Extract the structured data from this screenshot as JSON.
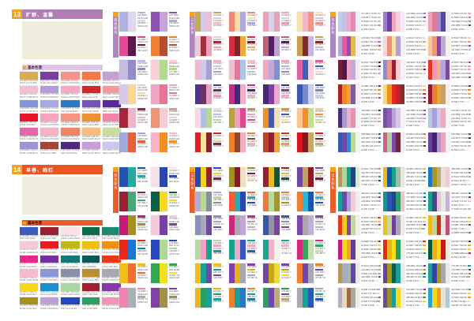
{
  "page": {
    "background": "#ffffff"
  },
  "sections": [
    {
      "number": "13",
      "title": "旷野、温馨",
      "panel_label": "基本色谱",
      "theme_color": "#b27cb4",
      "accent_color": "#f2a41c",
      "strip_color": "#ae86c0",
      "label_bar_bg": "#dcc6e2",
      "label_bar_text_color": "#4a2a50",
      "cream_color": "#efeedd",
      "palette": [
        [
          "#d8ac54",
          "#7c3da0",
          "#f49488",
          "#f47848",
          "#c4a0d4"
        ],
        [
          "#f7bcd4",
          "#b49cdc",
          "#f8a8c4",
          "#d42830",
          "#f49898"
        ],
        [
          "#8494d8",
          "#a8a8e4",
          "#2c78c8",
          "#7454b4",
          "#582898"
        ],
        [
          "#e81428",
          "#f8a4bc",
          "#f89480",
          "#f09034",
          "#f284a8"
        ],
        [
          "#e864ac",
          "#f8b0c4",
          "#f08464",
          "#f8bc80",
          "#ccdc9c"
        ],
        [
          "#9c94d4",
          "#a04838",
          "#50287c",
          "#c89cd8",
          "#ccc8ec"
        ]
      ],
      "groups": [
        {
          "label": "双色配色",
          "cards": [
            [
              "#b0b4e4",
              "#dcd8f0"
            ],
            [
              "#8c54b0",
              "#c4a4dc"
            ],
            [
              "#e8489c",
              "#5c1848"
            ],
            [
              "#f08030",
              "#b84c30"
            ],
            [
              "#c4bce4",
              "#948cc8"
            ],
            [
              "#f8d0dc",
              "#b4d890"
            ],
            [
              "#d4c8ec",
              "#f8d894"
            ],
            [
              "#f0a4c4",
              "#e87498"
            ],
            [
              "#a82438",
              "#f0b4c8"
            ],
            [
              "#f09478",
              "#f8ccd4"
            ],
            [
              "#a0a8e0",
              "#e86038"
            ],
            [
              "#f8b4c8",
              "#f09020"
            ]
          ]
        },
        {
          "label": "三色配色",
          "cards": [
            [
              "#c8a850",
              "#d8c8e8",
              "#f0c0d0"
            ],
            [
              "#f08878",
              "#f8e0a0",
              "#b0a8d8"
            ],
            [
              "#f0a0b8",
              "#d8d0e8",
              "#e8a0b8"
            ],
            [
              "#f8e0b0",
              "#f0b8c8",
              "#f09488"
            ],
            [
              "#f0c8d8",
              "#a03040",
              "#f0a0b8"
            ],
            [
              "#d03040",
              "#802030",
              "#f0a840"
            ],
            [
              "#c06078",
              "#502060",
              "#c0a0d0"
            ],
            [
              "#c8a050",
              "#803028",
              "#c8b8e0"
            ],
            [
              "#f0b8c8",
              "#d0c8e8",
              "#a8a0d0"
            ],
            [
              "#f0c0d0",
              "#e87898",
              "#b0c4e8"
            ],
            [
              "#f0a8c0",
              "#c0a8d8",
              "#8090d0"
            ],
            [
              "#e060a0",
              "#4060b8",
              "#f8d0dc"
            ],
            [
              "#503090",
              "#703060",
              "#e8a0c0"
            ],
            [
              "#c03080",
              "#402880",
              "#f0b0c8"
            ],
            [
              "#482878",
              "#8040a0",
              "#f0a8c8"
            ],
            [
              "#3858b0",
              "#7888d0",
              "#c8d0ec"
            ],
            [
              "#f8d8e0",
              "#b0c0e0",
              "#b8d890"
            ],
            [
              "#b8a040",
              "#f0a0c0",
              "#e04890"
            ],
            [
              "#f09020",
              "#4858a8",
              "#f8e0b0"
            ],
            [
              "#f8c890",
              "#f09030",
              "#c8dc90"
            ],
            [
              "#e81828",
              "#f8e0a0",
              "#902030"
            ],
            [
              "#f08030",
              "#904830",
              "#f0b0c0"
            ],
            [
              "#c04028",
              "#902030",
              "#f0a030"
            ],
            [
              "#d81820",
              "#801820",
              "#c8a868"
            ]
          ]
        },
        {
          "label": "五色配色",
          "cards": [
            [
              "#c0cce8",
              "#c8c0e8",
              "#f0a8c8",
              "#e888b0",
              "#f4f0f8"
            ],
            [
              "#9880c8",
              "#7040a8",
              "#f0a8c0",
              "#f8d0e0",
              "#f0ecf8"
            ],
            [
              "#f0a0b8",
              "#e07898",
              "#a090c8",
              "#5048a0",
              "#ece8f4"
            ],
            [
              "#b8a8d8",
              "#e858a0",
              "#9050b0",
              "#e8b848",
              "#f8f0f0"
            ],
            [
              "#f8d8e0",
              "#f09078",
              "#f8e0a8",
              "#b0a0d8",
              "#f4f0f8"
            ],
            [
              "#f8c8a0",
              "#f09878",
              "#8048a8",
              "#c0a8d8",
              "#f8f0ec"
            ],
            [
              "#702038",
              "#501848",
              "#f0a0c0",
              "#c8a8d8",
              "#f0ecf4"
            ],
            [
              "#8890d0",
              "#f09888",
              "#982030",
              "#f8d0d8",
              "#f4f4f8"
            ],
            [
              "#e03828",
              "#f098b0",
              "#f0b098",
              "#b0a8d8",
              "#8048a0"
            ],
            [
              "#a82020",
              "#f08820",
              "#f0a040",
              "#8058a8",
              "#f4ecf0"
            ],
            [
              "#f8d878",
              "#f09020",
              "#e82818",
              "#c02030",
              "#803028"
            ],
            [
              "#901828",
              "#e88030",
              "#e8a838",
              "#c8a068",
              "#f4ede4"
            ],
            [
              "#483078",
              "#a898d0",
              "#f0b0c8",
              "#e890b0",
              "#f4f0f4"
            ],
            [
              "#7850b0",
              "#9060b8",
              "#c0a0d8",
              "#d8c8e8",
              "#f6f2f8"
            ],
            [
              "#b8c8e8",
              "#a8a0d8",
              "#d0c8e8",
              "#f0a8c0",
              "#f8f4f8"
            ],
            [
              "#3858b0",
              "#7048a8",
              "#2890d8",
              "#b8dc98",
              "#f0f4ec"
            ],
            [
              "#d06088",
              "#b0d0a0",
              "#8048a0",
              "#702838",
              "#f2eef4"
            ],
            [
              "#6840a0",
              "#482070",
              "#a898d0",
              "#f0a0c0",
              "#f6f0f4"
            ]
          ]
        }
      ]
    },
    {
      "number": "14",
      "title": "早春、绚烂",
      "panel_label": "基本色谱",
      "theme_color": "#ea5420",
      "accent_color": "#f2a41c",
      "strip_color": "#ea5e28",
      "label_bar_bg": "#ec5a28",
      "label_bar_text_color": "#3a1000",
      "cream_color": "#efeedd",
      "palette": [
        [
          "#3a5cc0",
          "#9c2030",
          "#fbe2e6",
          "#0b6b4a",
          "#1d8a6e"
        ],
        [
          "#f8c8d8",
          "#e81c20",
          "#c0b818",
          "#f0c010",
          "#f09010"
        ],
        [
          "#e82888",
          "#7030a0",
          "#107878",
          "#0a5858",
          "#e83818"
        ],
        [
          "#f8b8d0",
          "#8898d8",
          "#8890a8",
          "#b89030",
          "#a8a8b0"
        ],
        [
          "#f8d818",
          "#1890d0",
          "#a8d8a0",
          "#a02030",
          "#8838a8"
        ],
        [
          "#a89018",
          "#c0a0d8",
          "#2048c0",
          "#28a060",
          "#f890b8"
        ]
      ],
      "groups": [
        {
          "label": "双色配色",
          "cards": [
            [
              "#2850b0",
              "#28a8a0"
            ],
            [
              "#f8e0e8",
              "#2848b0"
            ],
            [
              "#982030",
              "#48a878"
            ],
            [
              "#086048",
              "#f8d820"
            ],
            [
              "#c81878",
              "#a89020"
            ],
            [
              "#f8c8d8",
              "#7840a8"
            ],
            [
              "#e82818",
              "#1878d0"
            ],
            [
              "#2848c0",
              "#b0d898"
            ],
            [
              "#f0c018",
              "#f07030"
            ],
            [
              "#30a850",
              "#f0e020"
            ],
            [
              "#f880b0",
              "#a8b0b8"
            ],
            [
              "#8040a8",
              "#a09048"
            ]
          ]
        },
        {
          "label": "三色配色",
          "cards": [
            [
              "#2848b0",
              "#f0d020",
              "#982030"
            ],
            [
              "#a09020",
              "#8c1830",
              "#f0e0c0"
            ],
            [
              "#982030",
              "#e8b828",
              "#0a5840"
            ],
            [
              "#7048a0",
              "#c0a060",
              "#8c1828"
            ],
            [
              "#b8a8d8",
              "#b8d898",
              "#8890a0"
            ],
            [
              "#f06030",
              "#28a8b8",
              "#2848b0"
            ],
            [
              "#f07838",
              "#b8d8a0",
              "#a89820"
            ],
            [
              "#f08030",
              "#28b8d8",
              "#1858b0"
            ],
            [
              "#8890c0",
              "#a8a8b8",
              "#7048a8"
            ],
            [
              "#c82880",
              "#a8a8b0",
              "#c0a8d8"
            ],
            [
              "#3858b0",
              "#9890a8",
              "#8040a0"
            ],
            [
              "#8048a8",
              "#a8a8a8",
              "#c0b0d8"
            ],
            [
              "#b8d8a0",
              "#f0a0c0",
              "#18a090"
            ],
            [
              "#18a090",
              "#f0a8c8",
              "#3858c0"
            ],
            [
              "#18a890",
              "#f0b0c8",
              "#f4f0ec"
            ],
            [
              "#d82880",
              "#30a860",
              "#c8e0b0"
            ],
            [
              "#f0c018",
              "#18a098",
              "#7048a8"
            ],
            [
              "#8040a8",
              "#e8b018",
              "#a8a8b0"
            ],
            [
              "#7048a8",
              "#c8a818",
              "#f0d838"
            ],
            [
              "#f08030",
              "#7048a8",
              "#a8a8b0"
            ],
            [
              "#e8b818",
              "#28a060",
              "#18a0a8"
            ],
            [
              "#f08030",
              "#18a098",
              "#2878c8"
            ],
            [
              "#28a060",
              "#7048a8",
              "#c0a878"
            ],
            [
              "#a8a8b0",
              "#18a098",
              "#2858b8"
            ]
          ]
        },
        {
          "label": "五色配色",
          "cards": [
            [
              "#b89858",
              "#a8d8a0",
              "#18a078",
              "#184888",
              "#d8e8d4"
            ],
            [
              "#f0b818",
              "#1858a8",
              "#18a088",
              "#a8b8a8",
              "#e8e8e0"
            ],
            [
              "#1878c8",
              "#a89820",
              "#c0a878",
              "#e8e0d0",
              "#f0c8d8"
            ],
            [
              "#18a090",
              "#7048a8",
              "#a8a0d0",
              "#f8c8d8",
              "#f0ece8"
            ],
            [
              "#109888",
              "#2858b0",
              "#184888",
              "#28a060",
              "#f0c0d0"
            ],
            [
              "#18a090",
              "#484888",
              "#f0c0d0",
              "#ece8e0",
              "#c8b0d8"
            ],
            [
              "#e83818",
              "#f8d018",
              "#8048a0",
              "#c0dca0",
              "#f4f0e8"
            ],
            [
              "#f0c018",
              "#c8dc98",
              "#7040a0",
              "#a8a8b0",
              "#f0ece4"
            ],
            [
              "#f0b818",
              "#b8d8a0",
              "#d82818",
              "#e8e4d8",
              "#c05078"
            ],
            [
              "#c81880",
              "#f8d818",
              "#f0a818",
              "#6838a0",
              "#f4ece8"
            ],
            [
              "#e82818",
              "#f0b018",
              "#f8e018",
              "#28a060",
              "#f0ece0"
            ],
            [
              "#085838",
              "#f0b018",
              "#f8d818",
              "#c81818",
              "#f0e8d8"
            ],
            [
              "#b09858",
              "#a8a8c8",
              "#a8b8a0",
              "#6048a0",
              "#e8e8f0"
            ],
            [
              "#6840a8",
              "#a89818",
              "#086048",
              "#18a098",
              "#ece8e0"
            ],
            [
              "#2898a0",
              "#3048a0",
              "#a89820",
              "#a8a8a8",
              "#e8e8e8"
            ],
            [
              "#b8b0c0",
              "#e8d8c0",
              "#a86838",
              "#a8a8a0",
              "#f0ece4"
            ],
            [
              "#7048a8",
              "#a09020",
              "#18a098",
              "#f8d818",
              "#f0ece0"
            ],
            [
              "#28a0d8",
              "#f8d818",
              "#f0a018",
              "#e8e0d0",
              "#b0c8d8"
            ]
          ]
        }
      ]
    }
  ]
}
